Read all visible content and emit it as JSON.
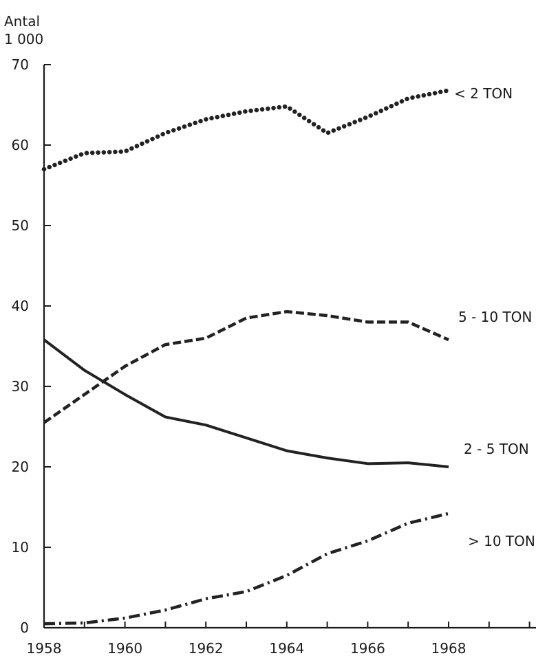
{
  "chart_data": {
    "type": "line",
    "title": "",
    "ylabel_lines": [
      "Antal",
      "1 000"
    ],
    "xlabel": "",
    "x": [
      1958,
      1959,
      1960,
      1961,
      1962,
      1963,
      1964,
      1965,
      1966,
      1967,
      1968
    ],
    "x_tick_labels": [
      "1958",
      "1960",
      "1962",
      "1964",
      "1966",
      "1968"
    ],
    "y_tick_labels": [
      "0",
      "10",
      "20",
      "30",
      "40",
      "50",
      "60",
      "70"
    ],
    "xlim": [
      1958,
      1970
    ],
    "ylim": [
      0,
      70
    ],
    "grid": false,
    "series": [
      {
        "name": "< 2 TON",
        "line_style": "dotted",
        "values": [
          57,
          59,
          59.2,
          61.5,
          63.2,
          64.2,
          64.8,
          61.5,
          63.5,
          65.8,
          66.8
        ]
      },
      {
        "name": "5 - 10 TON",
        "line_style": "dashed",
        "values": [
          25.5,
          29,
          32.5,
          35.2,
          36,
          38.5,
          39.3,
          38.8,
          38,
          38,
          35.8
        ]
      },
      {
        "name": "2 - 5 TON",
        "line_style": "solid",
        "values": [
          35.8,
          32,
          29,
          26.2,
          25.2,
          23.6,
          22,
          21.1,
          20.4,
          20.5,
          20
        ]
      },
      {
        "name": "> 10 TON",
        "line_style": "dashdot",
        "values": [
          0.5,
          0.6,
          1.2,
          2.2,
          3.6,
          4.5,
          6.5,
          9.2,
          10.8,
          13,
          14.2
        ]
      }
    ]
  }
}
